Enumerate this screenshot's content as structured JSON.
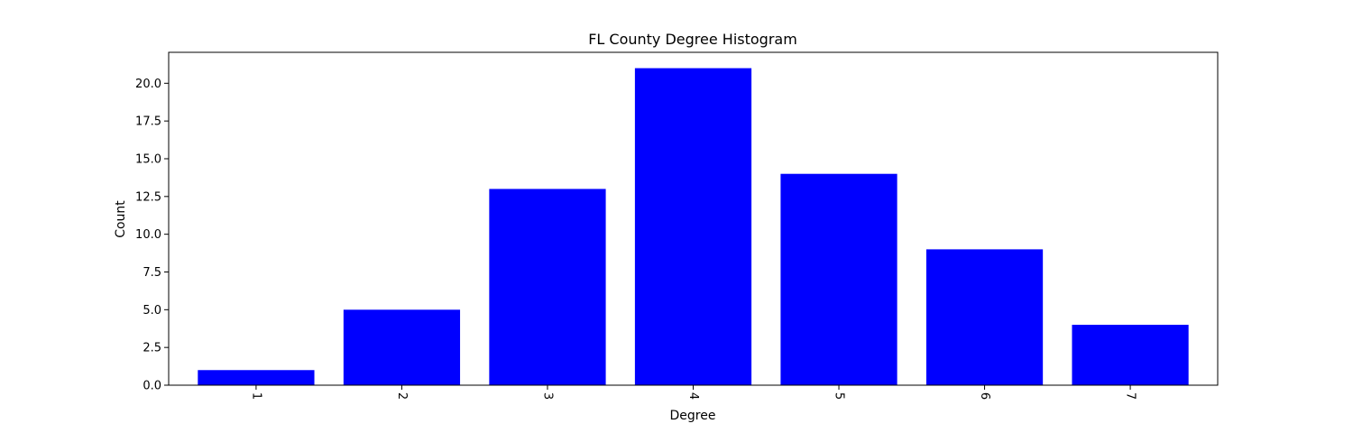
{
  "chart_data": {
    "type": "bar",
    "title": "FL County Degree Histogram",
    "xlabel": "Degree",
    "ylabel": "Count",
    "categories": [
      "1",
      "2",
      "3",
      "4",
      "5",
      "6",
      "7"
    ],
    "values": [
      1,
      5,
      13,
      21,
      14,
      9,
      4
    ],
    "ylim": [
      0,
      22.05
    ],
    "yticks": [
      "0.0",
      "2.5",
      "5.0",
      "7.5",
      "10.0",
      "12.5",
      "15.0",
      "17.5",
      "20.0"
    ],
    "grid": false,
    "colors": {
      "bar": "#0000ff",
      "axis": "#000000",
      "background": "#ffffff"
    }
  }
}
